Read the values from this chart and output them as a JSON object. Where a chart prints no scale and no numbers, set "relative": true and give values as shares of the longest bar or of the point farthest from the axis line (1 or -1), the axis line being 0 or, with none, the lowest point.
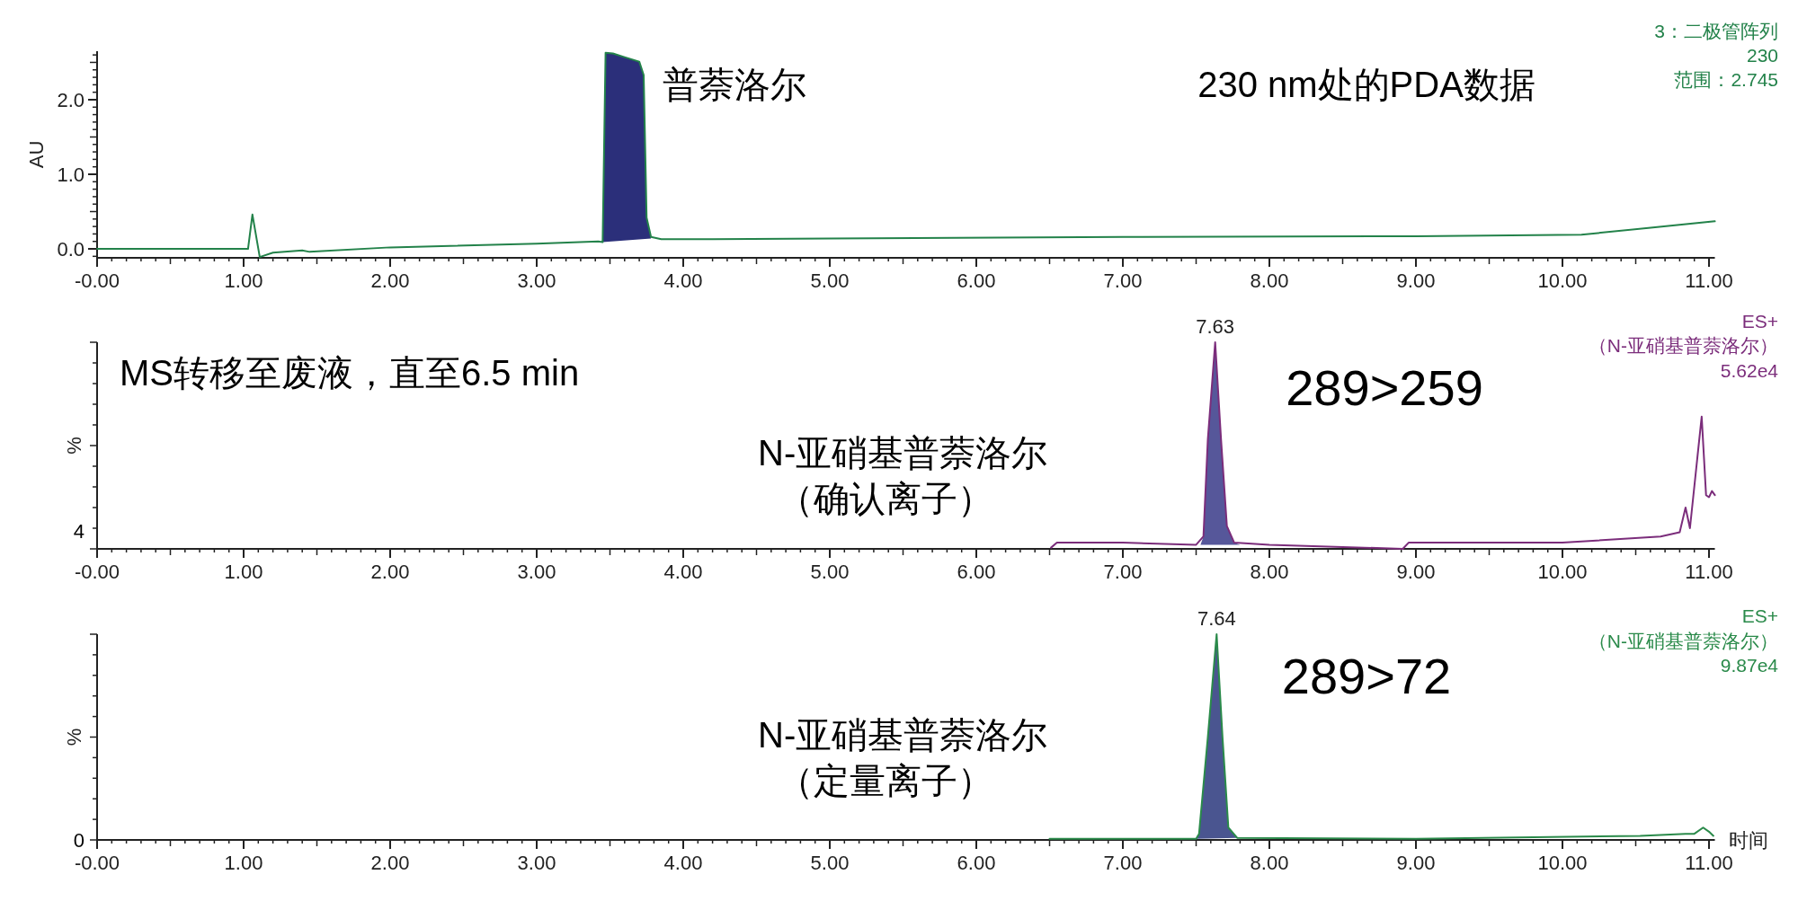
{
  "chart_data": [
    {
      "type": "line",
      "title": "230 nm处的PDA数据",
      "ylabel": "AU",
      "xlim": [
        0,
        11.04
      ],
      "ylim": [
        -0.12,
        2.65
      ],
      "xticks": [
        {
          "value": 0,
          "label": "-0.00"
        },
        {
          "value": 1,
          "label": "1.00"
        },
        {
          "value": 2,
          "label": "2.00"
        },
        {
          "value": 3,
          "label": "3.00"
        },
        {
          "value": 4,
          "label": "4.00"
        },
        {
          "value": 5,
          "label": "5.00"
        },
        {
          "value": 6,
          "label": "6.00"
        },
        {
          "value": 7,
          "label": "7.00"
        },
        {
          "value": 8,
          "label": "8.00"
        },
        {
          "value": 9,
          "label": "9.00"
        },
        {
          "value": 10,
          "label": "10.00"
        },
        {
          "value": 11,
          "label": "11.00"
        }
      ],
      "yticks": [
        {
          "value": 0,
          "label": "0.0"
        },
        {
          "value": 1,
          "label": "1.0"
        },
        {
          "value": 2,
          "label": "2.0"
        }
      ],
      "series": [
        {
          "type": "line",
          "color": "#23824a",
          "x": [
            0,
            0.7,
            1.03,
            1.06,
            1.11,
            1.2,
            1.4,
            1.45,
            2.0,
            3.0,
            3.42,
            3.45,
            3.47,
            3.52,
            3.6,
            3.7,
            3.73,
            3.75,
            3.78,
            3.85,
            4.2,
            5.0,
            7.0,
            9.0,
            10.13,
            11.04
          ],
          "values": [
            0,
            0,
            0,
            0.46,
            -0.11,
            -0.05,
            -0.02,
            -0.04,
            0.02,
            0.07,
            0.1,
            0.09,
            2.63,
            2.62,
            2.57,
            2.51,
            2.33,
            0.42,
            0.16,
            0.13,
            0.13,
            0.14,
            0.16,
            0.17,
            0.19,
            0.37
          ]
        },
        {
          "type": "area",
          "color": "#2b2f7a",
          "x": [
            3.45,
            3.47,
            3.52,
            3.6,
            3.7,
            3.73,
            3.75,
            3.78
          ],
          "values": [
            0.09,
            2.63,
            2.62,
            2.57,
            2.51,
            2.33,
            0.42,
            0.14
          ]
        }
      ],
      "annotations": [
        {
          "text": "普萘洛尔",
          "x": 3.75,
          "y": 2.2
        },
        "3：二极管阵列",
        "230",
        "范围：2.745"
      ]
    },
    {
      "type": "line",
      "title": "289>259",
      "ylabel": "%",
      "relative": true,
      "xlim": [
        0,
        11.04
      ],
      "xticks": [
        {
          "value": 0,
          "label": "-0.00"
        },
        {
          "value": 1,
          "label": "1.00"
        },
        {
          "value": 2,
          "label": "2.00"
        },
        {
          "value": 3,
          "label": "3.00"
        },
        {
          "value": 4,
          "label": "4.00"
        },
        {
          "value": 5,
          "label": "5.00"
        },
        {
          "value": 6,
          "label": "6.00"
        },
        {
          "value": 7,
          "label": "7.00"
        },
        {
          "value": 8,
          "label": "8.00"
        },
        {
          "value": 9,
          "label": "9.00"
        },
        {
          "value": 10,
          "label": "10.00"
        },
        {
          "value": 11,
          "label": "11.00"
        }
      ],
      "series": [
        {
          "type": "line",
          "color": "#7b2d7b",
          "x": [
            6.51,
            6.55,
            7.0,
            7.5,
            7.55,
            7.58,
            7.63,
            7.67,
            7.71,
            7.76,
            8.0,
            8.91,
            8.95,
            10.0,
            10.67,
            10.8,
            10.84,
            10.87,
            10.95,
            10.98,
            11.0,
            11.02,
            11.04
          ],
          "values": [
            0.006,
            0.03,
            0.03,
            0.02,
            0.06,
            0.53,
            1,
            0.53,
            0.11,
            0.03,
            0.02,
            0,
            0.03,
            0.03,
            0.06,
            0.08,
            0.2,
            0.1,
            0.64,
            0.26,
            0.25,
            0.28,
            0.26
          ]
        },
        {
          "type": "area",
          "color": "#56579a",
          "x": [
            7.53,
            7.55,
            7.58,
            7.63,
            7.67,
            7.71,
            7.76,
            7.8
          ],
          "values": [
            0.02,
            0.06,
            0.53,
            1,
            0.53,
            0.11,
            0.03,
            0.02
          ]
        }
      ],
      "annotations": [
        {
          "text": "7.63",
          "x": 7.63,
          "y": 1
        },
        "MS转移至废液，直至6.5 min",
        "N-亚硝基普萘洛尔",
        "（确认离子）",
        "ES+",
        "（N-亚硝基普萘洛尔）",
        "5.62e4",
        "4"
      ]
    },
    {
      "type": "line",
      "title": "289>72",
      "ylabel": "%",
      "xlabel": "时间",
      "relative": true,
      "xlim": [
        0,
        11.04
      ],
      "xticks": [
        {
          "value": 0,
          "label": "-0.00"
        },
        {
          "value": 1,
          "label": "1.00"
        },
        {
          "value": 2,
          "label": "2.00"
        },
        {
          "value": 3,
          "label": "3.00"
        },
        {
          "value": 4,
          "label": "4.00"
        },
        {
          "value": 5,
          "label": "5.00"
        },
        {
          "value": 6,
          "label": "6.00"
        },
        {
          "value": 7,
          "label": "7.00"
        },
        {
          "value": 8,
          "label": "8.00"
        },
        {
          "value": 9,
          "label": "9.00"
        },
        {
          "value": 10,
          "label": "10.00"
        },
        {
          "value": 11,
          "label": "11.00"
        }
      ],
      "series": [
        {
          "type": "line",
          "color": "#2a8a4a",
          "x": [
            6.5,
            7.5,
            7.52,
            7.58,
            7.64,
            7.68,
            7.72,
            7.78,
            9.0,
            10.53,
            10.84,
            10.9,
            10.96,
            11.0,
            11.03
          ],
          "values": [
            0.005,
            0.005,
            0.03,
            0.5,
            1,
            0.5,
            0.06,
            0.01,
            0.005,
            0.02,
            0.03,
            0.03,
            0.06,
            0.04,
            0.02
          ]
        },
        {
          "type": "area",
          "color": "#4a5590",
          "x": [
            7.5,
            7.52,
            7.58,
            7.64,
            7.68,
            7.72,
            7.78
          ],
          "values": [
            0.005,
            0.03,
            0.5,
            1,
            0.5,
            0.06,
            0.01
          ]
        }
      ],
      "annotations": [
        {
          "text": "7.64",
          "x": 7.64,
          "y": 1
        },
        "N-亚硝基普萘洛尔",
        "（定量离子）",
        "ES+",
        "（N-亚硝基普萘洛尔）",
        "9.87e4",
        "0"
      ]
    }
  ]
}
